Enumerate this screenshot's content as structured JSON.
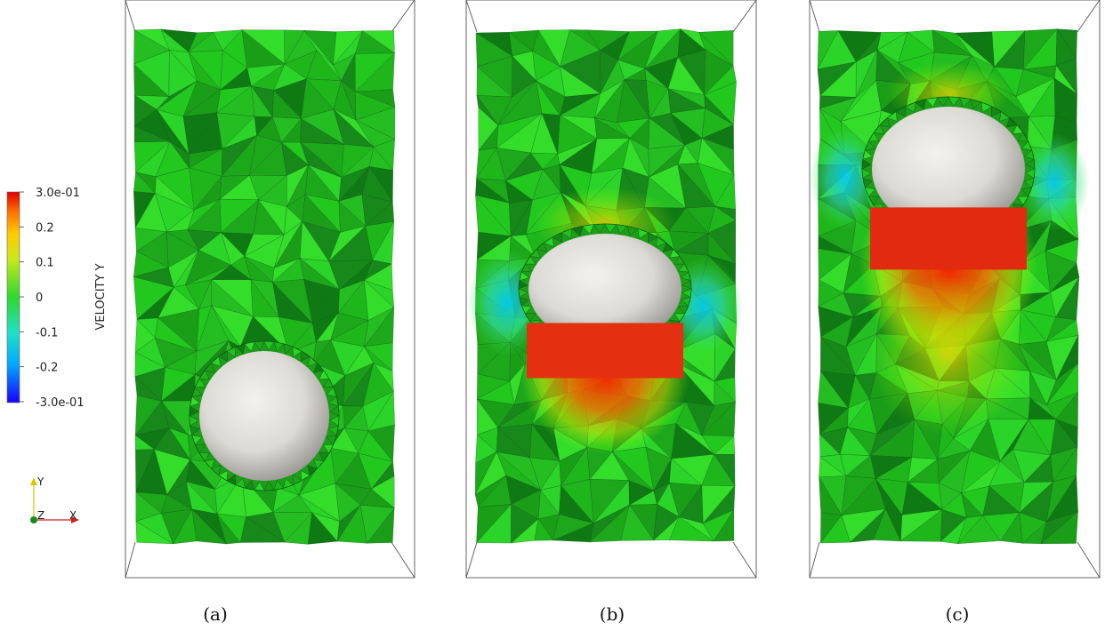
{
  "colorbar": {
    "title": "VELOCITY Y",
    "labels": [
      "3.0e-01",
      "0.2",
      "0.1",
      "0",
      "-0.1",
      "-0.2",
      "-3.0e-01"
    ],
    "colors": [
      "#1a00ff",
      "#00b0ff",
      "#22e1c8",
      "#2ed82e",
      "#b6e31c",
      "#ffd400",
      "#ff8800",
      "#e00000"
    ]
  },
  "axes_triad": {
    "y_label": "Y",
    "z_label": "Z",
    "x_label": "X"
  },
  "panels": [
    {
      "caption": "(a)"
    },
    {
      "caption": "(b)"
    },
    {
      "caption": "(c)"
    }
  ],
  "colors": {
    "mesh_green": "#22c81e",
    "mesh_dark": "#0f7a14",
    "sphere": "#e8e6e0",
    "box_line": "#555555"
  }
}
